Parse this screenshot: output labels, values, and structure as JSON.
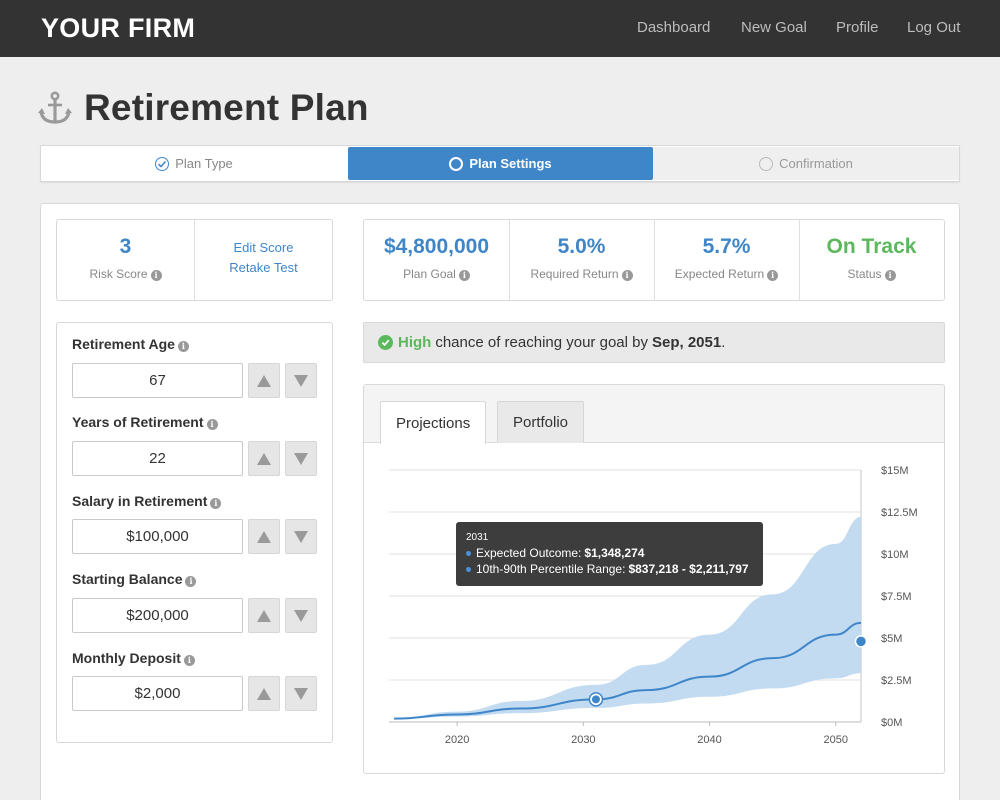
{
  "nav": {
    "brand": "YOUR FIRM",
    "links": [
      "Dashboard",
      "New Goal",
      "Profile",
      "Log Out"
    ]
  },
  "page": {
    "title": "Retirement Plan",
    "icon": "anchor-icon"
  },
  "steps": [
    {
      "label": "Plan Type",
      "state": "complete"
    },
    {
      "label": "Plan Settings",
      "state": "active"
    },
    {
      "label": "Confirmation",
      "state": "pending"
    }
  ],
  "risk": {
    "value": "3",
    "label": "Risk Score",
    "edit_link": "Edit Score",
    "retake_link": "Retake Test"
  },
  "stats": [
    {
      "value": "$4,800,000",
      "label": "Plan Goal",
      "color": "#3f86c9"
    },
    {
      "value": "5.0%",
      "label": "Required Return",
      "color": "#3f86c9"
    },
    {
      "value": "5.7%",
      "label": "Expected Return",
      "color": "#3f86c9"
    },
    {
      "value": "On Track",
      "label": "Status",
      "color": "#5cb85c"
    }
  ],
  "fields": [
    {
      "label": "Retirement Age",
      "value": "67"
    },
    {
      "label": "Years of Retirement",
      "value": "22"
    },
    {
      "label": "Salary in Retirement",
      "value": "$100,000"
    },
    {
      "label": "Starting Balance",
      "value": "$200,000"
    },
    {
      "label": "Monthly Deposit",
      "value": "$2,000"
    }
  ],
  "alert": {
    "strong": "High",
    "text": "chance of reaching your goal by",
    "date": "Sep, 2051",
    "period": "."
  },
  "tabs": [
    "Projections",
    "Portfolio"
  ],
  "tooltip": {
    "year": "2031",
    "expected_label": "Expected Outcome:",
    "expected_value": "$1,348,274",
    "range_label": "10th-90th Percentile Range:",
    "range_value": "$837,218 - $2,211,797"
  },
  "colors": {
    "accent": "#3f86c9",
    "success": "#5cb85c",
    "nav_bg": "#333333",
    "band": "#bcd7ef",
    "line": "#3f86c9"
  },
  "chart_data": {
    "type": "area",
    "x_ticks": [
      2020,
      2030,
      2040,
      2050
    ],
    "y_ticks": [
      "$0M",
      "$2.5M",
      "$5M",
      "$7.5M",
      "$10M",
      "$12.5M",
      "$15M"
    ],
    "xlim": [
      2015,
      2052
    ],
    "ylim": [
      0,
      15000000
    ],
    "series": [
      {
        "role": "expected",
        "x": [
          2015,
          2020,
          2025,
          2031,
          2035,
          2040,
          2045,
          2050,
          2052
        ],
        "y": [
          200000,
          450000,
          800000,
          1348274,
          1900000,
          2700000,
          3800000,
          5200000,
          5900000
        ]
      },
      {
        "role": "p10",
        "x": [
          2015,
          2020,
          2025,
          2031,
          2035,
          2040,
          2045,
          2050,
          2052
        ],
        "y": [
          180000,
          320000,
          520000,
          837218,
          1100000,
          1500000,
          2000000,
          2600000,
          2900000
        ]
      },
      {
        "role": "p90",
        "x": [
          2015,
          2020,
          2025,
          2031,
          2035,
          2040,
          2045,
          2050,
          2052
        ],
        "y": [
          220000,
          620000,
          1250000,
          2211797,
          3400000,
          5200000,
          7600000,
          10600000,
          12200000
        ]
      }
    ],
    "highlight": {
      "x": 2031,
      "y": 1348274
    },
    "goal_marker": {
      "x": 2052,
      "y": 4800000
    },
    "grid": true,
    "yaxis_side": "right"
  }
}
